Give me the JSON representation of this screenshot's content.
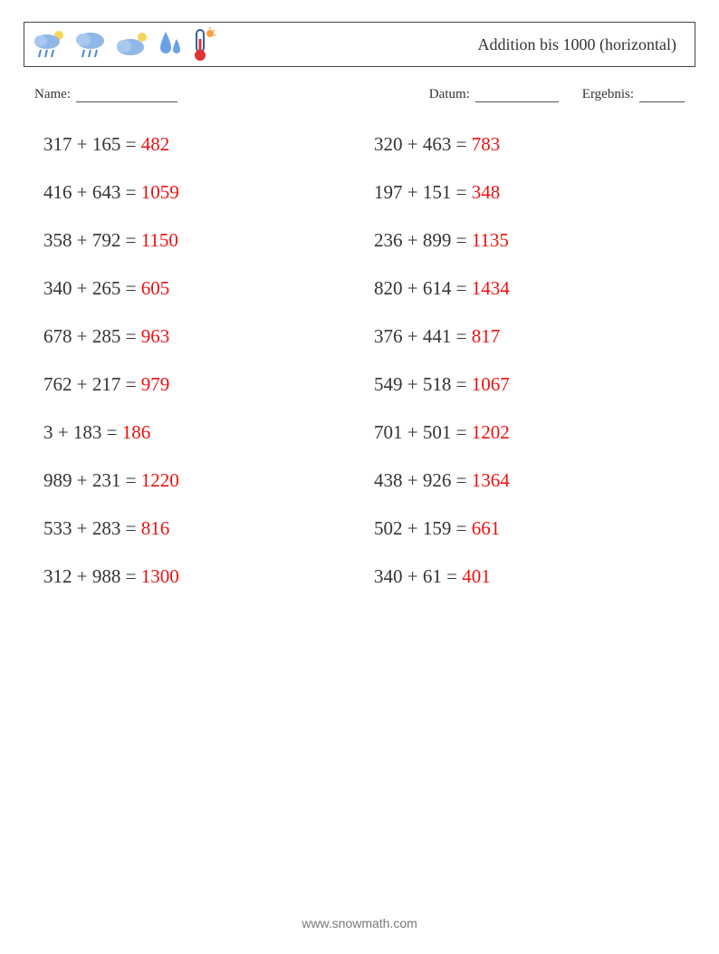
{
  "header": {
    "title": "Addition bis 1000 (horizontal)",
    "icons": [
      "cloud-rain-moon",
      "cloud-rain",
      "cloud-moon",
      "raindrops",
      "thermometer-sun"
    ]
  },
  "meta": {
    "name_label": "Name:",
    "name_blank_width": 112,
    "date_label": "Datum:",
    "date_blank_width": 92,
    "result_label": "Ergebnis:",
    "result_blank_width": 50
  },
  "style": {
    "problem_font_size": 21,
    "problem_color": "#333333",
    "answer_color": "#ee1111",
    "row_gap": 28
  },
  "problems": {
    "left": [
      {
        "a": 317,
        "b": 165,
        "ans": 482
      },
      {
        "a": 416,
        "b": 643,
        "ans": 1059
      },
      {
        "a": 358,
        "b": 792,
        "ans": 1150
      },
      {
        "a": 340,
        "b": 265,
        "ans": 605
      },
      {
        "a": 678,
        "b": 285,
        "ans": 963
      },
      {
        "a": 762,
        "b": 217,
        "ans": 979
      },
      {
        "a": 3,
        "b": 183,
        "ans": 186
      },
      {
        "a": 989,
        "b": 231,
        "ans": 1220
      },
      {
        "a": 533,
        "b": 283,
        "ans": 816
      },
      {
        "a": 312,
        "b": 988,
        "ans": 1300
      }
    ],
    "right": [
      {
        "a": 320,
        "b": 463,
        "ans": 783
      },
      {
        "a": 197,
        "b": 151,
        "ans": 348
      },
      {
        "a": 236,
        "b": 899,
        "ans": 1135
      },
      {
        "a": 820,
        "b": 614,
        "ans": 1434
      },
      {
        "a": 376,
        "b": 441,
        "ans": 817
      },
      {
        "a": 549,
        "b": 518,
        "ans": 1067
      },
      {
        "a": 701,
        "b": 501,
        "ans": 1202
      },
      {
        "a": 438,
        "b": 926,
        "ans": 1364
      },
      {
        "a": 502,
        "b": 159,
        "ans": 661
      },
      {
        "a": 340,
        "b": 61,
        "ans": 401
      }
    ]
  },
  "footer": "www.snowmath.com"
}
